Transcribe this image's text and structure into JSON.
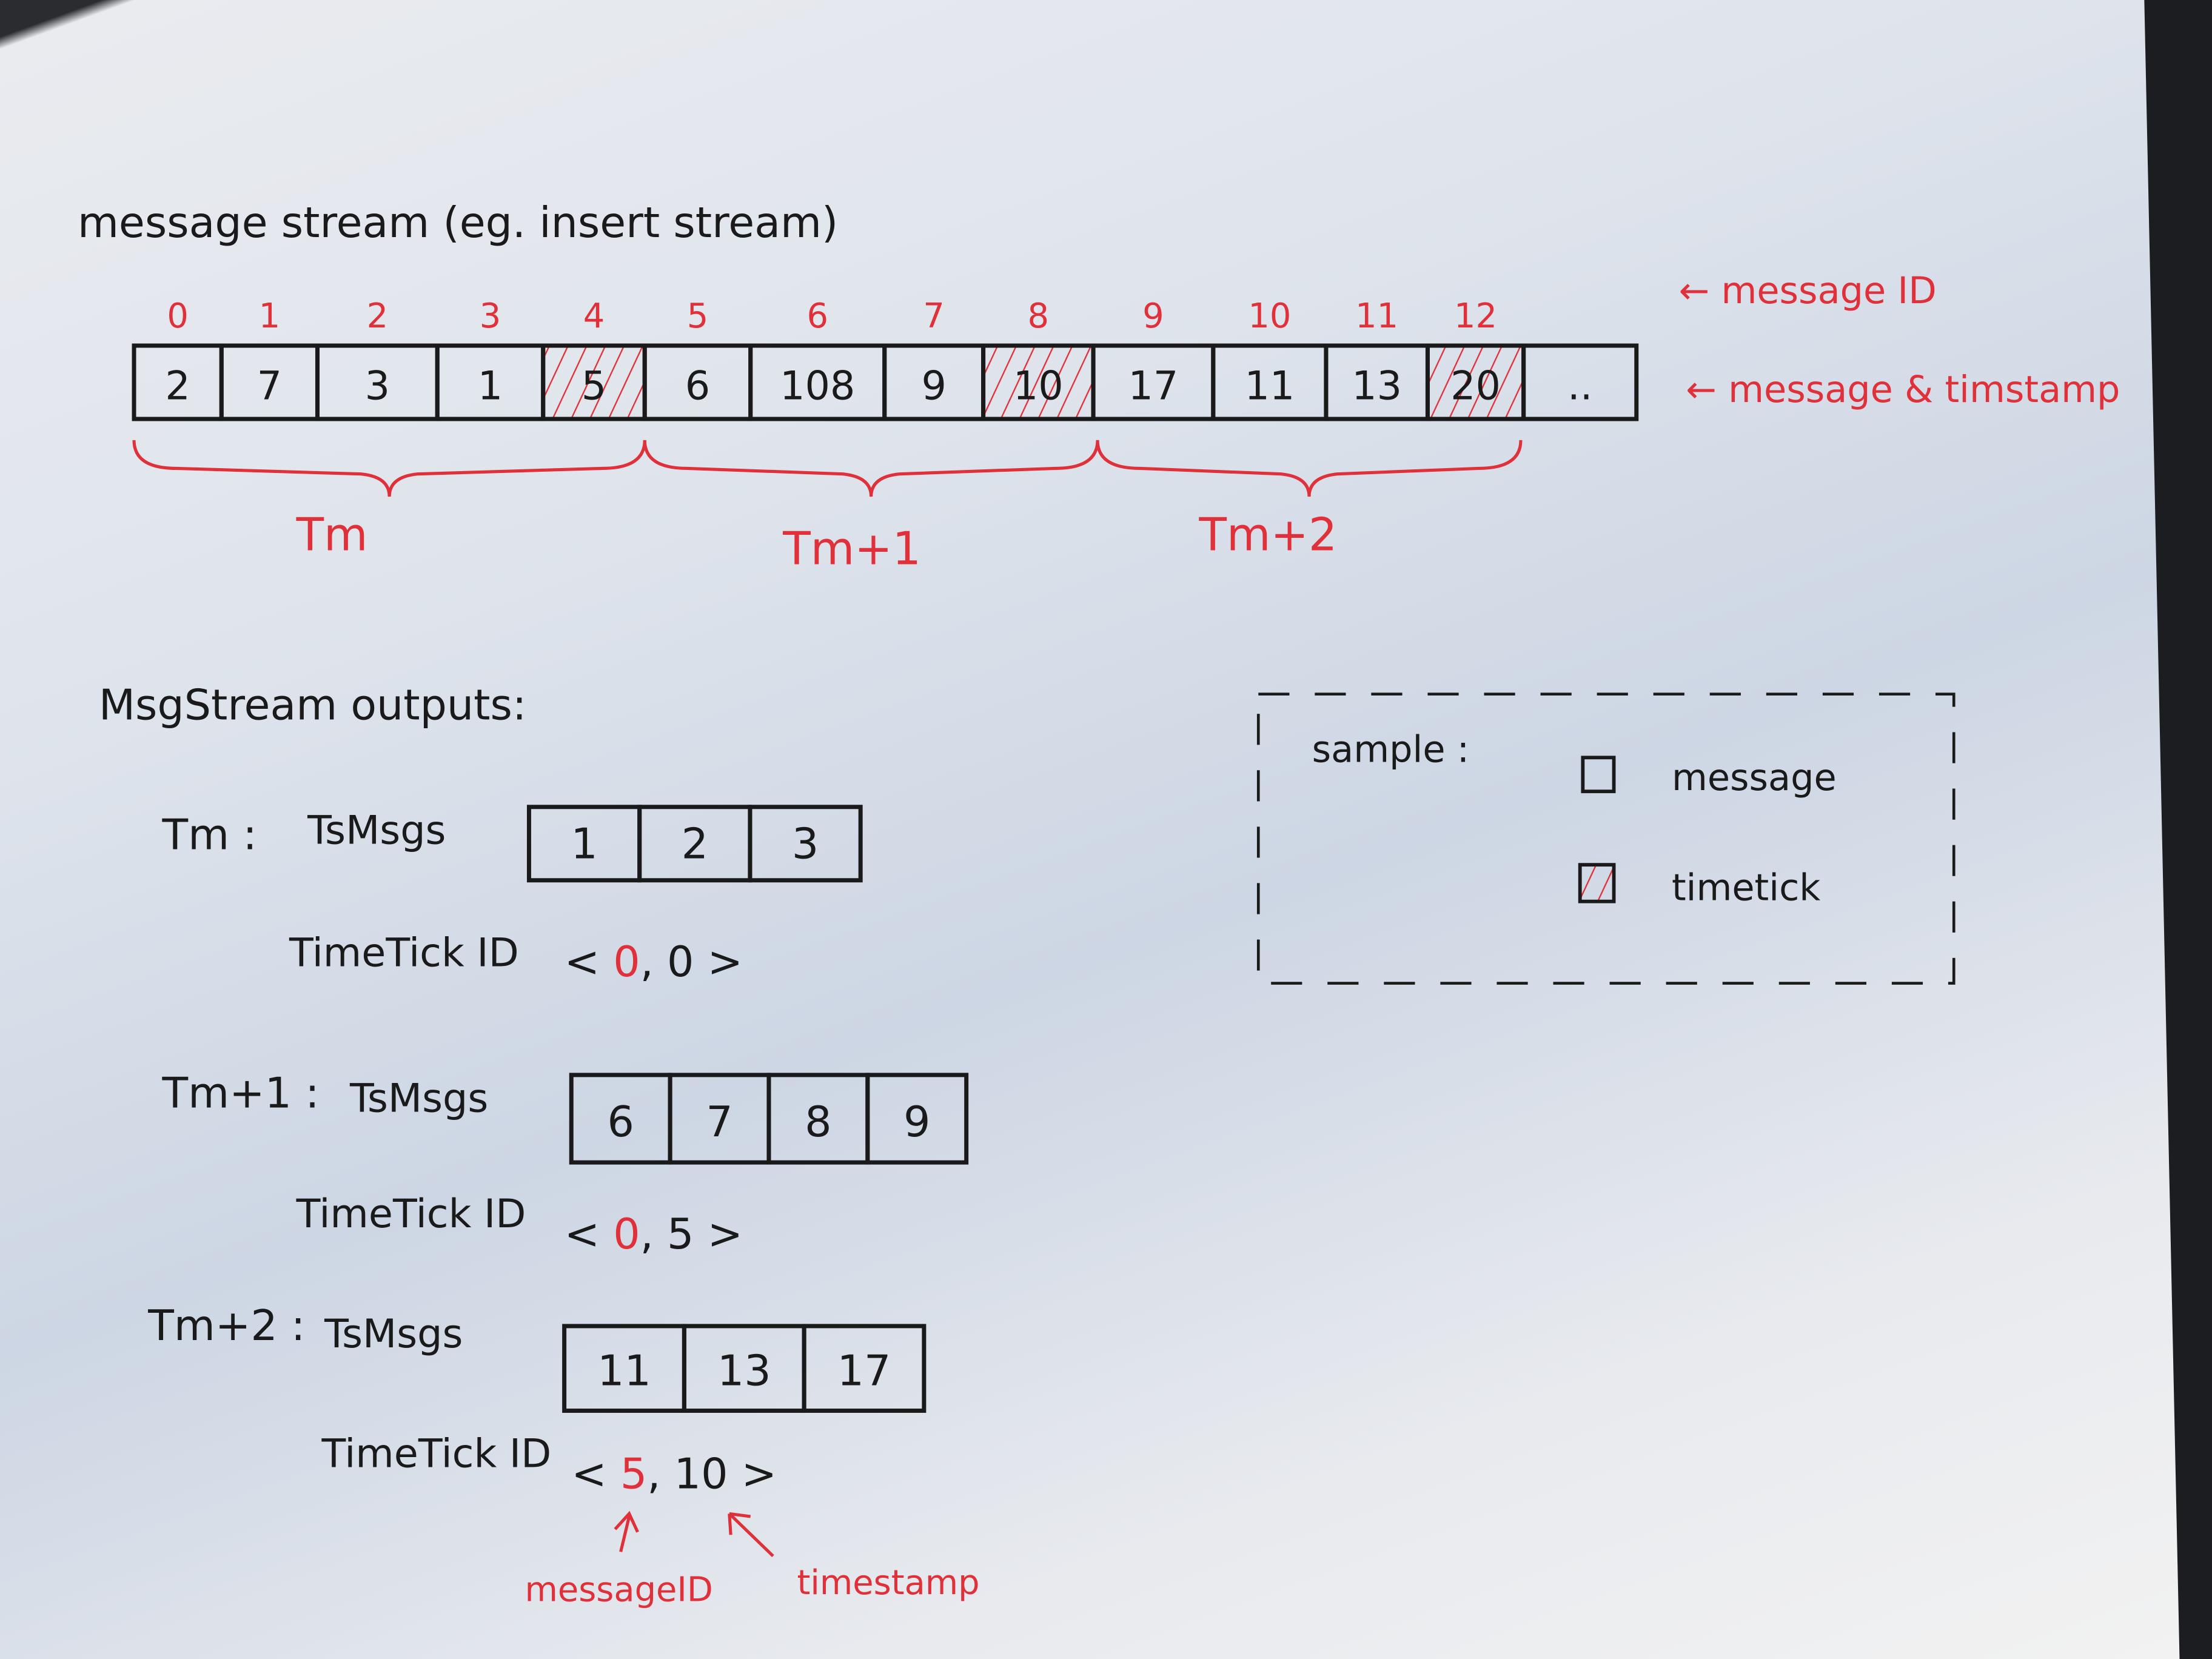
{
  "colors": {
    "ink": "#1a1a1a",
    "accent_red": "#e0303a",
    "paper": "#e6e9ef"
  },
  "stream": {
    "title": "message stream (eg. insert stream)",
    "message_ids": [
      "0",
      "1",
      "2",
      "3",
      "4",
      "5",
      "6",
      "7",
      "8",
      "9",
      "10",
      "11",
      "12"
    ],
    "timestamps": [
      "2",
      "7",
      "3",
      "1",
      "5",
      "6",
      "108",
      "9",
      "10",
      "17",
      "11",
      "13",
      "20",
      ".."
    ],
    "timetick_indices": [
      4,
      8,
      12
    ],
    "label_message_id": "← message ID",
    "label_message_timestamp": "← message & timstamp",
    "groups": [
      "Tm",
      "Tm+1",
      "Tm+2"
    ]
  },
  "outputs": {
    "heading": "MsgStream outputs:",
    "ts_msgs_label": "TsMsgs",
    "timetick_label": "TimeTick ID",
    "rows": [
      {
        "name": "Tm :",
        "msgs": [
          "1",
          "2",
          "3"
        ],
        "timetick": {
          "message_id": "0",
          "timestamp": "0"
        }
      },
      {
        "name": "Tm+1 :",
        "msgs": [
          "6",
          "7",
          "8",
          "9"
        ],
        "timetick": {
          "message_id": "0",
          "timestamp": "5"
        }
      },
      {
        "name": "Tm+2 :",
        "msgs": [
          "11",
          "13",
          "17"
        ],
        "timetick": {
          "message_id": "5",
          "timestamp": "10"
        }
      }
    ],
    "annotation_message_id": "messageID",
    "annotation_timestamp": "timestamp"
  },
  "legend": {
    "title": "sample :",
    "message": "message",
    "timetick": "timetick"
  }
}
